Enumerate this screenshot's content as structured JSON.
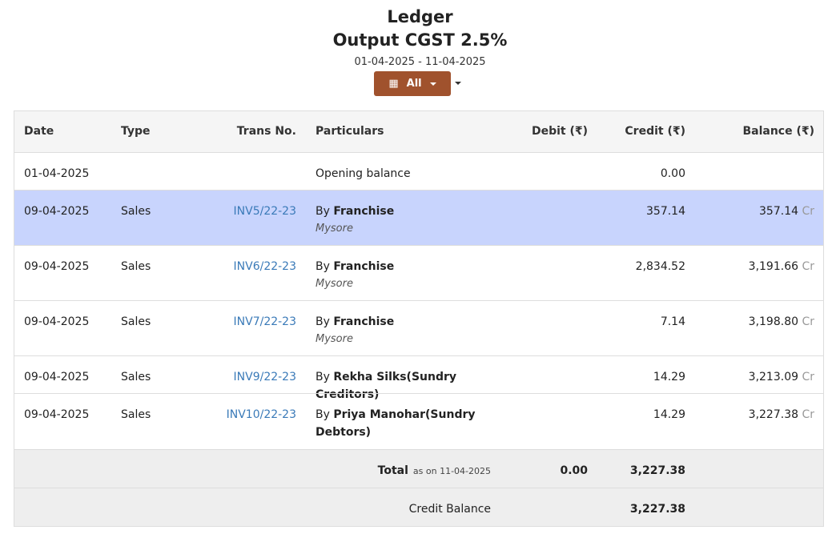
{
  "report": {
    "title": "Ledger",
    "subtitle": "Output CGST 2.5%",
    "date_range": "01-04-2025 - 11-04-2025",
    "branch_filter": "All"
  },
  "columns": {
    "date": "Date",
    "type": "Type",
    "trans_no": "Trans No.",
    "particulars": "Particulars",
    "debit": "Debit (₹)",
    "credit": "Credit (₹)",
    "balance": "Balance (₹)"
  },
  "opening": {
    "date": "01-04-2025",
    "particulars": "Opening balance",
    "credit": "0.00"
  },
  "rows": [
    {
      "date": "09-04-2025",
      "type": "Sales",
      "trans_no": "INV5/22-23",
      "prefix": "By",
      "party": "Franchise",
      "place": "Mysore",
      "credit": "357.14",
      "balance": "357.14",
      "dc": "Cr"
    },
    {
      "date": "09-04-2025",
      "type": "Sales",
      "trans_no": "INV6/22-23",
      "prefix": "By",
      "party": "Franchise",
      "place": "Mysore",
      "credit": "2,834.52",
      "balance": "3,191.66",
      "dc": "Cr"
    },
    {
      "date": "09-04-2025",
      "type": "Sales",
      "trans_no": "INV7/22-23",
      "prefix": "By",
      "party": "Franchise",
      "place": "Mysore",
      "credit": "7.14",
      "balance": "3,198.80",
      "dc": "Cr"
    },
    {
      "date": "09-04-2025",
      "type": "Sales",
      "trans_no": "INV9/22-23",
      "prefix": "By",
      "party": "Rekha Silks(Sundry Creditors)",
      "credit": "14.29",
      "balance": "3,213.09",
      "dc": "Cr"
    },
    {
      "date": "09-04-2025",
      "type": "Sales",
      "trans_no": "INV10/22-23",
      "prefix": "By",
      "party": "Priya Manohar(Sundry Debtors)",
      "credit": "14.29",
      "balance": "3,227.38",
      "dc": "Cr"
    }
  ],
  "totals": {
    "label": "Total",
    "as_on": "as on 11-04-2025",
    "debit": "0.00",
    "credit": "3,227.38"
  },
  "closing": {
    "label": "Credit Balance",
    "credit": "3,227.38"
  },
  "colors": {
    "accent": "#a0522d",
    "highlight_row": "#c8d4fd",
    "link": "#3a7ab8"
  }
}
